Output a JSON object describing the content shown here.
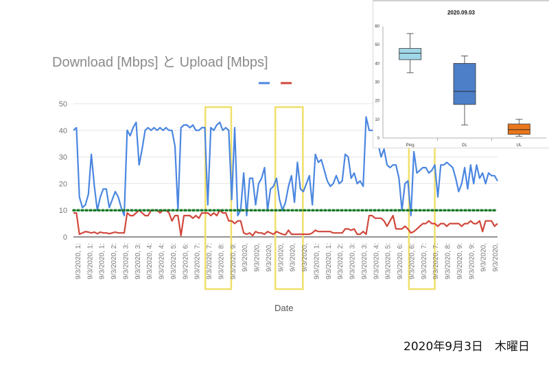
{
  "chart_data": [
    {
      "type": "line",
      "title": "Download [Mbps] と Upload [Mbps]",
      "xlabel": "Date",
      "ylabel": "",
      "ylim": [
        0,
        50
      ],
      "yticks": [
        0,
        10,
        20,
        30,
        40,
        50
      ],
      "grid": true,
      "legend": "top-center",
      "reference_line": {
        "y": 10,
        "color": "#1a7a2a",
        "style": "dotted"
      },
      "x_tick_labels": [
        "9/3/2020, 1:",
        "9/3/2020, 1:",
        "9/3/2020, 1:",
        "9/3/2020, 2:",
        "9/3/2020, 3:",
        "9/3/2020, 3:",
        "9/3/2020, 4:",
        "9/3/2020, 4:",
        "9/3/2020, 5:",
        "9/3/2020, 6:",
        "9/3/2020, 7:",
        "9/3/2020, 7:",
        "9/3/2020, 8:",
        "9/3/2020, 9:",
        "9/3/2020,",
        "9/3/2020,",
        "9/3/2020,",
        "9/3/2020,",
        "9/3/2020,",
        "9/3/2020,",
        "9/3/2020, 1:",
        "9/3/2020, 1:",
        "9/3/2020, 2:",
        "9/3/2020, 3:",
        "9/3/2020, 3:",
        "9/3/2020, 4:",
        "9/3/2020, 5:",
        "9/3/2020, 6:",
        "9/3/2020, 6:",
        "9/3/2020, 7:",
        "9/3/2020, 7:",
        "9/3/2020, 8:",
        "9/3/2020, 9:",
        "9/3/2020, 9:",
        "9/3/2020,",
        "9/3/2020,"
      ],
      "highlight_ranges": [
        [
          0.311,
          0.372
        ],
        [
          0.476,
          0.541
        ],
        [
          0.791,
          0.852
        ]
      ],
      "series": [
        {
          "color": "#4a86e0",
          "values": [
            40,
            41,
            15,
            11,
            12,
            16,
            31,
            19,
            10,
            15,
            18,
            18,
            11,
            14,
            17,
            15,
            11,
            8,
            40,
            38,
            41,
            43,
            27,
            33,
            40,
            41,
            40,
            41,
            40,
            41,
            40,
            41,
            40,
            40,
            34,
            10,
            41,
            42,
            42,
            41,
            42,
            40,
            40,
            41,
            41,
            12,
            41,
            40,
            42,
            43,
            40,
            41,
            40,
            14,
            41,
            8,
            10,
            24,
            8,
            22,
            22,
            12,
            20,
            22,
            26,
            10,
            18,
            19,
            22,
            14,
            10,
            13,
            19,
            23,
            13,
            28,
            18,
            17,
            20,
            23,
            12,
            31,
            28,
            29,
            25,
            21,
            19,
            20,
            23,
            20,
            21,
            31,
            30,
            22,
            24,
            20,
            21,
            19,
            45,
            40,
            40,
            40,
            35,
            30,
            33,
            27,
            26,
            27,
            27,
            22,
            10,
            20,
            21,
            8,
            32,
            24,
            25,
            26,
            26,
            24,
            25,
            27,
            15,
            27,
            27,
            28,
            27,
            26,
            22,
            17,
            20,
            26,
            18,
            27,
            20,
            27,
            22,
            24,
            20,
            24,
            23,
            23,
            21
          ]
        },
        {
          "color": "#d0473b",
          "values": [
            9,
            9,
            1,
            1.5,
            2,
            1.8,
            1.5,
            1.8,
            1.2,
            1.8,
            1.5,
            1.5,
            1.2,
            1.5,
            1.8,
            1.5,
            1.5,
            1.5,
            9,
            8,
            8,
            9,
            10,
            9,
            8,
            8,
            10,
            10,
            10,
            9,
            10,
            10,
            9,
            6,
            8,
            8,
            0.5,
            8,
            8,
            8,
            7,
            8,
            7,
            9,
            9,
            9,
            8,
            9,
            8,
            10,
            9,
            9,
            6,
            6,
            5,
            6,
            6,
            1.5,
            1,
            1.5,
            0.5,
            2,
            1.5,
            1.5,
            1,
            2,
            1.5,
            1,
            2,
            1.5,
            1,
            0.8,
            2.5,
            1,
            1,
            1,
            1,
            1,
            1,
            1,
            1.5,
            2.5,
            2,
            2,
            2,
            2,
            2,
            1.5,
            1.5,
            1.5,
            1.5,
            3,
            3,
            2.5,
            3,
            1,
            1,
            2,
            1,
            8,
            8,
            7,
            7,
            7,
            6,
            4,
            6,
            8,
            3,
            3,
            3,
            4,
            3,
            1.5,
            2,
            3,
            4,
            5,
            5,
            6,
            5,
            5,
            4,
            5,
            5,
            4,
            5,
            5,
            5,
            5,
            4,
            5,
            5,
            6,
            5,
            5,
            6,
            2,
            6,
            6,
            6,
            4,
            5
          ]
        }
      ]
    },
    {
      "type": "box",
      "title": "2020.09.03",
      "categories": [
        "Ping",
        "DL",
        "UL"
      ],
      "ylim": [
        0,
        60
      ],
      "yticks": [
        0,
        10,
        20,
        30,
        40,
        50,
        60
      ],
      "boxes": [
        {
          "min": 35,
          "q1": 42,
          "median": 45.5,
          "q3": 48,
          "max": 56,
          "color": "#9fd6e8"
        },
        {
          "min": 7,
          "q1": 18,
          "median": 25,
          "q3": 40,
          "max": 44,
          "color": "#4d7fc8"
        },
        {
          "min": 1,
          "q1": 2,
          "median": 4.5,
          "q3": 7.5,
          "max": 10,
          "color": "#e8761c"
        }
      ]
    }
  ],
  "caption": "2020年9月3日　木曜日"
}
